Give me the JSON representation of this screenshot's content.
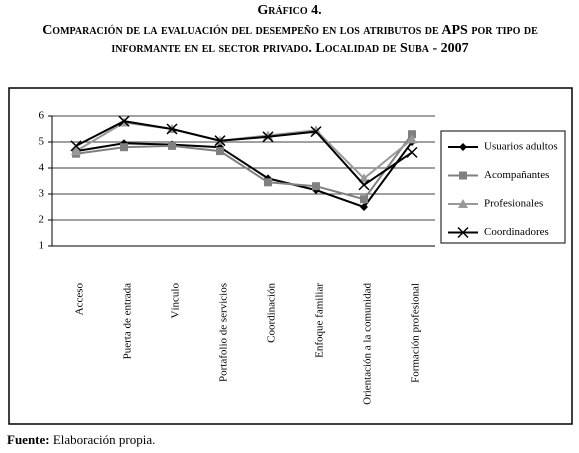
{
  "chart_data": {
    "type": "line",
    "label": "Gráfico 4.",
    "title": "Comparación de la evaluación del desempeño en los atributos de APS por tipo de informante en el sector privado. Localidad de Suba - 2007",
    "categories": [
      "Acceso",
      "Puerta de entrada",
      "Vínculo",
      "Portafolio de servicios",
      "Coordinación",
      "Enfoque familiar",
      "Orientación a la comunidad",
      "Formación profesional"
    ],
    "series": [
      {
        "name": "Usuarios adultos",
        "color": "#000000",
        "marker": "diamond",
        "values": [
          4.65,
          4.95,
          4.9,
          4.8,
          3.6,
          3.15,
          2.5,
          5.0
        ]
      },
      {
        "name": "Acompañantes",
        "color": "#808080",
        "marker": "square",
        "values": [
          4.55,
          4.8,
          4.85,
          4.65,
          3.45,
          3.3,
          2.8,
          5.3
        ]
      },
      {
        "name": "Profesionales",
        "color": "#999999",
        "marker": "triangle",
        "values": [
          4.65,
          5.75,
          5.5,
          5.05,
          5.25,
          5.45,
          3.6,
          5.1
        ]
      },
      {
        "name": "Coordinadores",
        "color": "#000000",
        "marker": "x",
        "values": [
          4.85,
          5.8,
          5.5,
          5.05,
          5.2,
          5.4,
          3.35,
          4.6
        ]
      }
    ],
    "ylim": [
      1,
      6
    ],
    "yticks": [
      1,
      2,
      3,
      4,
      5,
      6
    ],
    "grid": true,
    "legend": "right"
  },
  "source_label": "Fuente:",
  "source_text": "Elaboración propia."
}
